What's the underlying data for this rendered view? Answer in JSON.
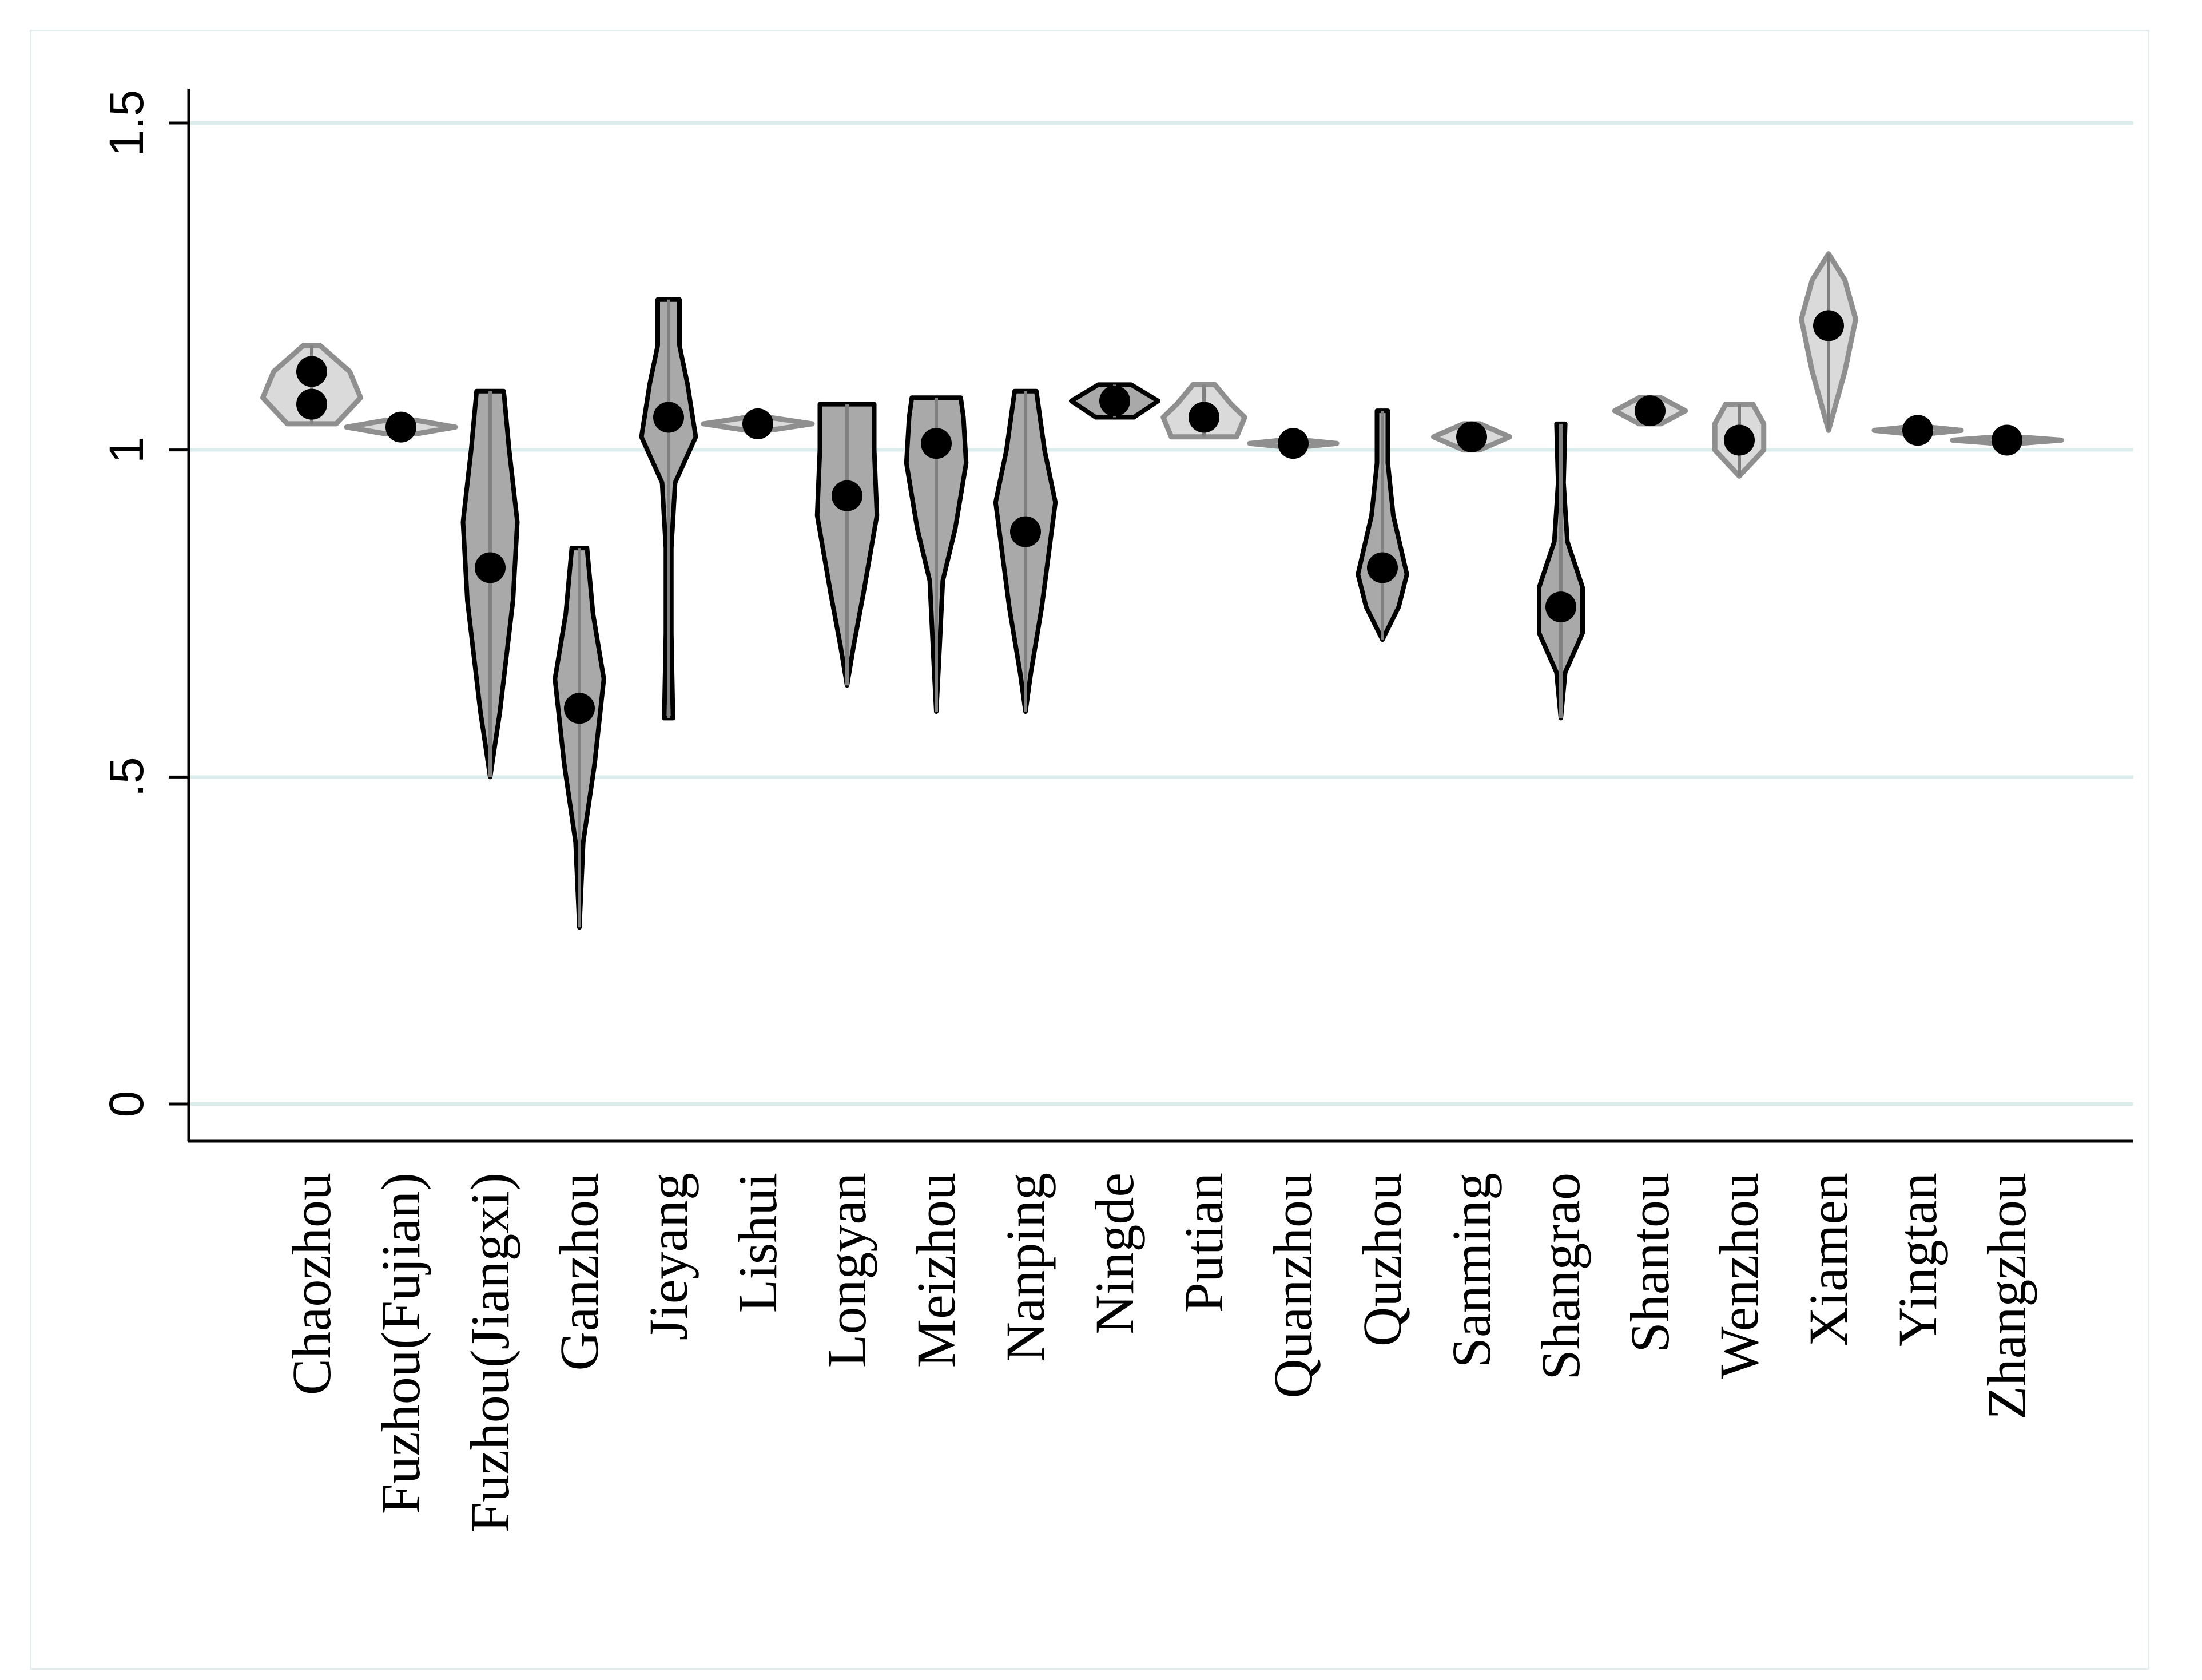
{
  "chart_data": {
    "type": "violin",
    "title": "",
    "xlabel": "",
    "ylabel": "",
    "ylim": [
      0,
      1.5
    ],
    "yticks": [
      0,
      0.5,
      1,
      1.5
    ],
    "ytick_labels": [
      "0",
      ".5",
      "1",
      "1.5"
    ],
    "grid": true,
    "colors": {
      "gridline": "#dceded",
      "axis": "#000000",
      "violin_dark": "#a9a9a9",
      "violin_light": "#dadada",
      "marker": "#000000"
    },
    "categories": [
      "Chaozhou",
      "Fuzhou(Fujian)",
      "Fuzhou(Jiangxi)",
      "Ganzhou",
      "Jieyang",
      "Lishui",
      "Longyan",
      "Meizhou",
      "Nanping",
      "Ningde",
      "Putian",
      "Quanzhou",
      "Quzhou",
      "Sanming",
      "Shangrao",
      "Shantou",
      "Wenzhou",
      "Xiamen",
      "Yingtan",
      "Zhangzhou"
    ],
    "series": [
      {
        "name": "Chaozhou",
        "shade": "light",
        "markers": [
          1.12,
          1.07
        ],
        "min": 1.04,
        "max": 1.16,
        "profile": [
          [
            1.04,
            0.45
          ],
          [
            1.08,
            0.9
          ],
          [
            1.12,
            0.7
          ],
          [
            1.16,
            0.15
          ]
        ]
      },
      {
        "name": "Fuzhou(Fujian)",
        "shade": "light",
        "markers": [
          1.035
        ],
        "min": 1.025,
        "max": 1.045,
        "profile": [
          [
            1.025,
            0.3
          ],
          [
            1.035,
            1.0
          ],
          [
            1.045,
            0.3
          ]
        ]
      },
      {
        "name": "Fuzhou(Jiangxi)",
        "shade": "dark",
        "markers": [
          0.82
        ],
        "min": 0.5,
        "max": 1.09,
        "profile": [
          [
            0.5,
            0.0
          ],
          [
            0.6,
            0.18
          ],
          [
            0.77,
            0.42
          ],
          [
            0.89,
            0.5
          ],
          [
            1.0,
            0.35
          ],
          [
            1.09,
            0.25
          ]
        ]
      },
      {
        "name": "Ganzhou",
        "shade": "dark",
        "markers": [
          0.605
        ],
        "min": 0.27,
        "max": 0.85,
        "profile": [
          [
            0.27,
            0.0
          ],
          [
            0.4,
            0.07
          ],
          [
            0.52,
            0.28
          ],
          [
            0.65,
            0.45
          ],
          [
            0.75,
            0.25
          ],
          [
            0.85,
            0.14
          ]
        ]
      },
      {
        "name": "Jieyang",
        "shade": "dark",
        "markers": [
          1.05
        ],
        "min": 0.59,
        "max": 1.23,
        "profile": [
          [
            0.59,
            0.08
          ],
          [
            0.72,
            0.05
          ],
          [
            0.85,
            0.05
          ],
          [
            0.95,
            0.12
          ],
          [
            1.02,
            0.5
          ],
          [
            1.1,
            0.35
          ],
          [
            1.16,
            0.2
          ],
          [
            1.23,
            0.2
          ]
        ]
      },
      {
        "name": "Lishui",
        "shade": "light",
        "markers": [
          1.04
        ],
        "min": 1.03,
        "max": 1.05,
        "profile": [
          [
            1.03,
            0.2
          ],
          [
            1.04,
            1.0
          ],
          [
            1.05,
            0.2
          ]
        ]
      },
      {
        "name": "Longyan",
        "shade": "dark",
        "markers": [
          0.93
        ],
        "min": 0.64,
        "max": 1.07,
        "profile": [
          [
            0.64,
            0.0
          ],
          [
            0.7,
            0.12
          ],
          [
            0.78,
            0.3
          ],
          [
            0.9,
            0.55
          ],
          [
            1.0,
            0.5
          ],
          [
            1.07,
            0.5
          ]
        ]
      },
      {
        "name": "Meizhou",
        "shade": "dark",
        "markers": [
          1.01
        ],
        "min": 0.6,
        "max": 1.08,
        "profile": [
          [
            0.6,
            0.0
          ],
          [
            0.68,
            0.05
          ],
          [
            0.8,
            0.12
          ],
          [
            0.88,
            0.35
          ],
          [
            0.98,
            0.55
          ],
          [
            1.05,
            0.5
          ],
          [
            1.08,
            0.45
          ]
        ]
      },
      {
        "name": "Nanping",
        "shade": "dark",
        "markers": [
          0.875
        ],
        "min": 0.6,
        "max": 1.09,
        "profile": [
          [
            0.6,
            0.0
          ],
          [
            0.66,
            0.1
          ],
          [
            0.76,
            0.3
          ],
          [
            0.92,
            0.55
          ],
          [
            1.0,
            0.35
          ],
          [
            1.09,
            0.2
          ]
        ]
      },
      {
        "name": "Ningde",
        "shade": "dark",
        "markers": [
          1.075
        ],
        "min": 1.05,
        "max": 1.1,
        "profile": [
          [
            1.05,
            0.35
          ],
          [
            1.075,
            0.8
          ],
          [
            1.1,
            0.3
          ]
        ]
      },
      {
        "name": "Putian",
        "shade": "light",
        "markers": [
          1.05
        ],
        "min": 1.02,
        "max": 1.1,
        "profile": [
          [
            1.02,
            0.6
          ],
          [
            1.05,
            0.75
          ],
          [
            1.07,
            0.5
          ],
          [
            1.1,
            0.2
          ]
        ]
      },
      {
        "name": "Quanzhou",
        "shade": "light",
        "markers": [
          1.01
        ],
        "min": 1.005,
        "max": 1.015,
        "profile": [
          [
            1.005,
            0.2
          ],
          [
            1.01,
            0.8
          ],
          [
            1.015,
            0.2
          ]
        ]
      },
      {
        "name": "Quzhou",
        "shade": "dark",
        "markers": [
          0.82
        ],
        "min": 0.71,
        "max": 1.06,
        "profile": [
          [
            0.71,
            0.0
          ],
          [
            0.76,
            0.3
          ],
          [
            0.81,
            0.45
          ],
          [
            0.9,
            0.2
          ],
          [
            0.98,
            0.1
          ],
          [
            1.06,
            0.1
          ]
        ]
      },
      {
        "name": "Sanming",
        "shade": "light",
        "markers": [
          1.02
        ],
        "min": 1.0,
        "max": 1.04,
        "profile": [
          [
            1.0,
            0.15
          ],
          [
            1.02,
            0.7
          ],
          [
            1.04,
            0.15
          ]
        ]
      },
      {
        "name": "Shangrao",
        "shade": "dark",
        "markers": [
          0.76
        ],
        "min": 0.59,
        "max": 1.04,
        "profile": [
          [
            0.59,
            0.0
          ],
          [
            0.66,
            0.08
          ],
          [
            0.72,
            0.4
          ],
          [
            0.79,
            0.4
          ],
          [
            0.86,
            0.12
          ],
          [
            0.95,
            0.05
          ],
          [
            1.04,
            0.08
          ]
        ]
      },
      {
        "name": "Shantou",
        "shade": "light",
        "markers": [
          1.06
        ],
        "min": 1.04,
        "max": 1.08,
        "profile": [
          [
            1.04,
            0.2
          ],
          [
            1.06,
            0.65
          ],
          [
            1.08,
            0.2
          ]
        ]
      },
      {
        "name": "Wenzhou",
        "shade": "light",
        "markers": [
          1.015
        ],
        "min": 0.96,
        "max": 1.07,
        "profile": [
          [
            0.96,
            0.0
          ],
          [
            1.0,
            0.45
          ],
          [
            1.04,
            0.45
          ],
          [
            1.07,
            0.25
          ]
        ]
      },
      {
        "name": "Xiamen",
        "shade": "light",
        "markers": [
          1.19
        ],
        "min": 1.03,
        "max": 1.3,
        "profile": [
          [
            1.03,
            0.0
          ],
          [
            1.12,
            0.3
          ],
          [
            1.2,
            0.5
          ],
          [
            1.26,
            0.3
          ],
          [
            1.3,
            0.0
          ]
        ]
      },
      {
        "name": "Yingtan",
        "shade": "light",
        "markers": [
          1.03
        ],
        "min": 1.025,
        "max": 1.035,
        "profile": [
          [
            1.025,
            0.2
          ],
          [
            1.03,
            0.8
          ],
          [
            1.035,
            0.2
          ]
        ]
      },
      {
        "name": "Zhangzhou",
        "shade": "light",
        "markers": [
          1.015
        ],
        "min": 1.01,
        "max": 1.02,
        "profile": [
          [
            1.01,
            0.2
          ],
          [
            1.015,
            1.0
          ],
          [
            1.02,
            0.2
          ]
        ]
      }
    ]
  }
}
